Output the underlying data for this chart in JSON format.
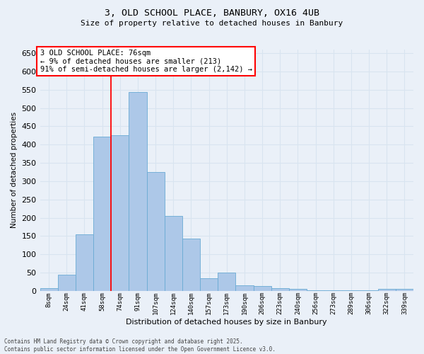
{
  "title": "3, OLD SCHOOL PLACE, BANBURY, OX16 4UB",
  "subtitle": "Size of property relative to detached houses in Banbury",
  "xlabel": "Distribution of detached houses by size in Banbury",
  "ylabel": "Number of detached properties",
  "categories": [
    "8sqm",
    "24sqm",
    "41sqm",
    "58sqm",
    "74sqm",
    "91sqm",
    "107sqm",
    "124sqm",
    "140sqm",
    "157sqm",
    "173sqm",
    "190sqm",
    "206sqm",
    "223sqm",
    "240sqm",
    "256sqm",
    "273sqm",
    "289sqm",
    "306sqm",
    "322sqm",
    "339sqm"
  ],
  "values": [
    7,
    45,
    155,
    422,
    425,
    543,
    325,
    205,
    143,
    35,
    50,
    15,
    13,
    7,
    5,
    2,
    2,
    2,
    2,
    5,
    5
  ],
  "bar_color": "#adc8e8",
  "bar_edge_color": "#6aaad4",
  "background_color": "#eaf0f8",
  "grid_color": "#d8e4f0",
  "ylim_max": 660,
  "yticks": [
    0,
    50,
    100,
    150,
    200,
    250,
    300,
    350,
    400,
    450,
    500,
    550,
    600,
    650
  ],
  "red_line_index": 4,
  "annotation_text": "3 OLD SCHOOL PLACE: 76sqm\n← 9% of detached houses are smaller (213)\n91% of semi-detached houses are larger (2,142) →",
  "footer": "Contains HM Land Registry data © Crown copyright and database right 2025.\nContains public sector information licensed under the Open Government Licence v3.0."
}
